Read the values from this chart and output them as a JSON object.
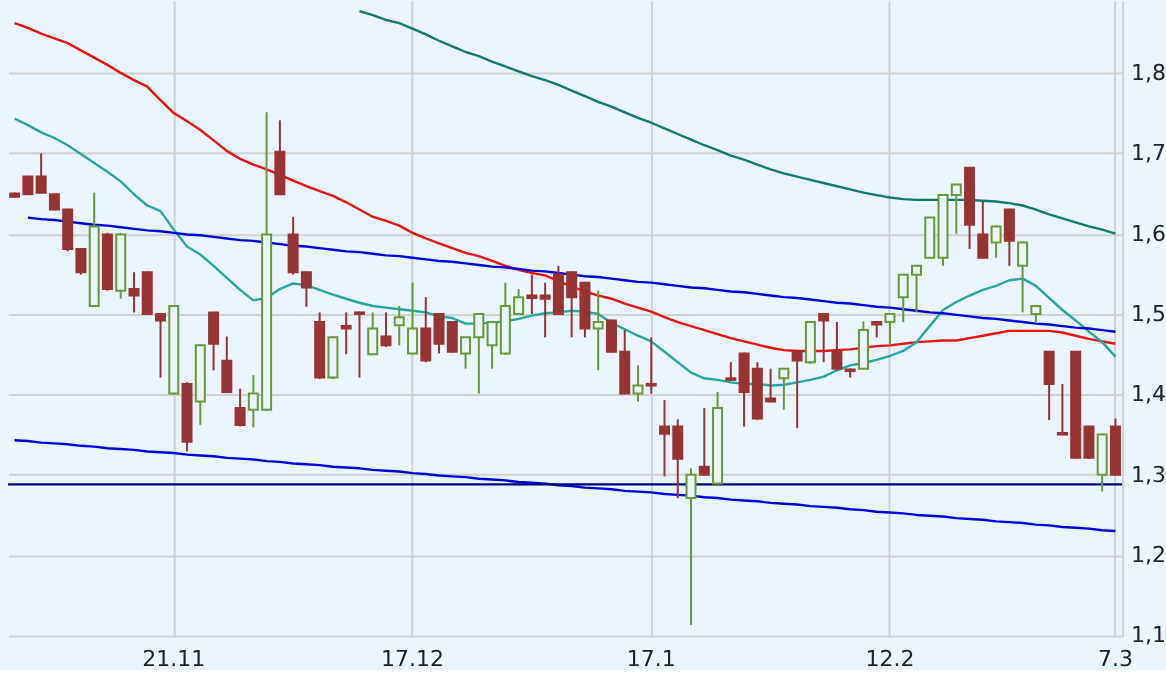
{
  "chart_data": {
    "type": "candlestick",
    "categories": [
      null,
      null,
      null,
      null,
      null,
      null,
      null,
      null,
      null,
      null,
      null,
      null,
      "21.11",
      null,
      null,
      null,
      null,
      null,
      null,
      null,
      null,
      null,
      null,
      null,
      null,
      null,
      null,
      null,
      null,
      null,
      "17.12",
      null,
      null,
      null,
      null,
      null,
      null,
      null,
      null,
      null,
      null,
      null,
      null,
      null,
      null,
      null,
      null,
      null,
      "17.1",
      null,
      null,
      null,
      null,
      null,
      null,
      null,
      null,
      null,
      null,
      null,
      null,
      null,
      null,
      null,
      null,
      null,
      "12.2",
      null,
      null,
      null,
      null,
      null,
      null,
      null,
      null,
      null,
      null,
      null,
      null,
      null,
      null,
      null,
      null,
      "7.3"
    ],
    "ohlc": [
      [
        1.65,
        1.651,
        1.645,
        1.646
      ],
      [
        1.671,
        1.672,
        1.648,
        1.649
      ],
      [
        1.671,
        1.7,
        1.65,
        1.651
      ],
      [
        1.649,
        1.65,
        1.629,
        1.63
      ],
      [
        1.63,
        1.631,
        1.578,
        1.581
      ],
      [
        1.581,
        1.582,
        1.549,
        1.552
      ],
      [
        1.51,
        1.651,
        1.509,
        1.609
      ],
      [
        1.599,
        1.601,
        1.529,
        1.531
      ],
      [
        1.529,
        1.601,
        1.519,
        1.599
      ],
      [
        1.531,
        1.552,
        1.502,
        1.523
      ],
      [
        1.552,
        1.553,
        1.499,
        1.5
      ],
      [
        1.5,
        1.501,
        1.421,
        1.492
      ],
      [
        1.401,
        1.511,
        1.4,
        1.51
      ],
      [
        1.413,
        1.415,
        1.329,
        1.341
      ],
      [
        1.391,
        1.462,
        1.362,
        1.461
      ],
      [
        1.502,
        1.503,
        1.43,
        1.463
      ],
      [
        1.442,
        1.472,
        1.402,
        1.403
      ],
      [
        1.383,
        1.407,
        1.36,
        1.362
      ],
      [
        1.381,
        1.424,
        1.359,
        1.401
      ],
      [
        1.381,
        1.751,
        1.38,
        1.599
      ],
      [
        1.702,
        1.741,
        1.648,
        1.649
      ],
      [
        1.599,
        1.621,
        1.549,
        1.552
      ],
      [
        1.552,
        1.553,
        1.509,
        1.533
      ],
      [
        1.49,
        1.502,
        1.419,
        1.421
      ],
      [
        1.421,
        1.472,
        1.419,
        1.471
      ],
      [
        1.485,
        1.502,
        1.45,
        1.482
      ],
      [
        1.502,
        1.503,
        1.421,
        1.5
      ],
      [
        1.45,
        1.502,
        1.449,
        1.482
      ],
      [
        1.472,
        1.502,
        1.459,
        1.461
      ],
      [
        1.486,
        1.51,
        1.461,
        1.496
      ],
      [
        1.451,
        1.539,
        1.45,
        1.482
      ],
      [
        1.482,
        1.521,
        1.44,
        1.442
      ],
      [
        1.5,
        1.501,
        1.451,
        1.463
      ],
      [
        1.49,
        1.491,
        1.452,
        1.453
      ],
      [
        1.451,
        1.472,
        1.432,
        1.471
      ],
      [
        1.471,
        1.501,
        1.401,
        1.5
      ],
      [
        1.461,
        1.491,
        1.432,
        1.49
      ],
      [
        1.451,
        1.539,
        1.449,
        1.51
      ],
      [
        1.5,
        1.531,
        1.499,
        1.521
      ],
      [
        1.523,
        1.549,
        1.5,
        1.52
      ],
      [
        1.523,
        1.539,
        1.471,
        1.519
      ],
      [
        1.549,
        1.56,
        1.499,
        1.5
      ],
      [
        1.552,
        1.553,
        1.471,
        1.521
      ],
      [
        1.539,
        1.54,
        1.471,
        1.482
      ],
      [
        1.482,
        1.529,
        1.43,
        1.49
      ],
      [
        1.492,
        1.493,
        1.452,
        1.453
      ],
      [
        1.453,
        1.48,
        1.4,
        1.401
      ],
      [
        1.401,
        1.436,
        1.391,
        1.411
      ],
      [
        1.413,
        1.471,
        1.401,
        1.411
      ],
      [
        1.36,
        1.393,
        1.298,
        1.351
      ],
      [
        1.36,
        1.369,
        1.271,
        1.32
      ],
      [
        1.271,
        1.308,
        1.113,
        1.3
      ],
      [
        1.31,
        1.383,
        1.299,
        1.3
      ],
      [
        1.289,
        1.403,
        1.288,
        1.383
      ],
      [
        1.42,
        1.44,
        1.417,
        1.418
      ],
      [
        1.451,
        1.452,
        1.36,
        1.403
      ],
      [
        1.432,
        1.44,
        1.368,
        1.37
      ],
      [
        1.395,
        1.432,
        1.39,
        1.391
      ],
      [
        1.42,
        1.433,
        1.381,
        1.432
      ],
      [
        1.453,
        1.454,
        1.358,
        1.442
      ],
      [
        1.44,
        1.491,
        1.438,
        1.49
      ],
      [
        1.5,
        1.501,
        1.44,
        1.492
      ],
      [
        1.453,
        1.49,
        1.43,
        1.432
      ],
      [
        1.431,
        1.432,
        1.421,
        1.429
      ],
      [
        1.432,
        1.491,
        1.431,
        1.48
      ],
      [
        1.49,
        1.491,
        1.471,
        1.487
      ],
      [
        1.49,
        1.501,
        1.461,
        1.5
      ],
      [
        1.521,
        1.55,
        1.49,
        1.549
      ],
      [
        1.549,
        1.561,
        1.502,
        1.56
      ],
      [
        1.57,
        1.621,
        1.569,
        1.62
      ],
      [
        1.57,
        1.649,
        1.56,
        1.648
      ],
      [
        1.648,
        1.662,
        1.6,
        1.661
      ],
      [
        1.682,
        1.683,
        1.581,
        1.611
      ],
      [
        1.599,
        1.64,
        1.569,
        1.57
      ],
      [
        1.589,
        1.61,
        1.57,
        1.609
      ],
      [
        1.63,
        1.631,
        1.56,
        1.591
      ],
      [
        1.56,
        1.59,
        1.502,
        1.589
      ],
      [
        1.5,
        1.511,
        1.49,
        1.51
      ],
      [
        1.453,
        1.454,
        1.368,
        1.413
      ],
      [
        1.352,
        1.413,
        1.349,
        1.35
      ],
      [
        1.453,
        1.454,
        1.32,
        1.321
      ],
      [
        1.36,
        1.361,
        1.32,
        1.321
      ],
      [
        1.3,
        1.351,
        1.279,
        1.35
      ],
      [
        1.36,
        1.37,
        1.299,
        1.3
      ]
    ],
    "colors": [
      "#993333",
      "#993333",
      "#993333",
      "#993333",
      "#993333",
      "#993333",
      "#669933",
      "#993333",
      "#669933",
      "#993333",
      "#993333",
      "#993333",
      "#669933",
      "#993333",
      "#669933",
      "#993333",
      "#993333",
      "#993333",
      "#669933",
      "#669933",
      "#993333",
      "#993333",
      "#993333",
      "#993333",
      "#669933",
      "#993333",
      "#993333",
      "#669933",
      "#993333",
      "#669933",
      "#669933",
      "#993333",
      "#993333",
      "#993333",
      "#669933",
      "#669933",
      "#669933",
      "#669933",
      "#669933",
      "#993333",
      "#993333",
      "#993333",
      "#993333",
      "#993333",
      "#669933",
      "#993333",
      "#993333",
      "#669933",
      "#993333",
      "#993333",
      "#993333",
      "#669933",
      "#993333",
      "#669933",
      "#993333",
      "#993333",
      "#993333",
      "#993333",
      "#669933",
      "#993333",
      "#669933",
      "#993333",
      "#993333",
      "#993333",
      "#669933",
      "#993333",
      "#669933",
      "#669933",
      "#669933",
      "#669933",
      "#669933",
      "#669933",
      "#993333",
      "#993333",
      "#669933",
      "#993333",
      "#669933",
      "#669933",
      "#993333",
      "#993333",
      "#993333",
      "#993333",
      "#669933",
      "#993333"
    ],
    "series": [
      {
        "type": "line",
        "color": "#0e7a6e",
        "values": [
          null,
          null,
          null,
          null,
          null,
          null,
          null,
          null,
          null,
          null,
          null,
          null,
          null,
          null,
          null,
          null,
          null,
          null,
          null,
          null,
          null,
          null,
          null,
          null,
          null,
          null,
          1.877,
          1.872,
          1.866,
          1.862,
          1.855,
          1.848,
          1.84,
          1.833,
          1.826,
          1.821,
          1.814,
          1.808,
          1.802,
          1.796,
          1.791,
          1.785,
          1.778,
          1.771,
          1.764,
          1.758,
          1.751,
          1.744,
          1.738,
          1.731,
          1.724,
          1.717,
          1.71,
          1.704,
          1.697,
          1.692,
          1.686,
          1.68,
          1.675,
          1.671,
          1.667,
          1.663,
          1.659,
          1.655,
          1.651,
          1.648,
          1.645,
          1.643,
          1.642,
          1.642,
          1.642,
          1.642,
          1.642,
          1.641,
          1.64,
          1.638,
          1.635,
          1.63,
          1.624,
          1.619,
          1.614,
          1.609,
          1.605,
          1.6
        ]
      },
      {
        "type": "line",
        "color": "#ee1111",
        "values": [
          1.862,
          1.856,
          1.849,
          1.843,
          1.837,
          1.828,
          1.819,
          1.81,
          1.8,
          1.791,
          1.783,
          1.766,
          1.75,
          1.74,
          1.729,
          1.716,
          1.703,
          1.693,
          1.686,
          1.68,
          1.673,
          1.666,
          1.659,
          1.653,
          1.647,
          1.639,
          1.63,
          1.621,
          1.616,
          1.61,
          1.601,
          1.594,
          1.588,
          1.582,
          1.576,
          1.572,
          1.566,
          1.56,
          1.555,
          1.551,
          1.548,
          1.541,
          1.534,
          1.528,
          1.523,
          1.519,
          1.513,
          1.508,
          1.503,
          1.496,
          1.49,
          1.485,
          1.48,
          1.475,
          1.47,
          1.466,
          1.462,
          1.458,
          1.455,
          1.454,
          1.454,
          1.454,
          1.455,
          1.456,
          1.458,
          1.46,
          1.461,
          1.463,
          1.465,
          1.466,
          1.467,
          1.467,
          1.47,
          1.473,
          1.476,
          1.479,
          1.479,
          1.479,
          1.479,
          1.477,
          1.473,
          1.469,
          1.466,
          1.463
        ]
      },
      {
        "type": "line",
        "color": "#20a8a0",
        "values": [
          1.743,
          1.735,
          1.726,
          1.719,
          1.71,
          1.699,
          1.688,
          1.677,
          1.665,
          1.649,
          1.635,
          1.628,
          1.605,
          1.584,
          1.574,
          1.56,
          1.545,
          1.53,
          1.517,
          1.52,
          1.531,
          1.538,
          1.536,
          1.53,
          1.524,
          1.519,
          1.514,
          1.51,
          1.508,
          1.506,
          1.504,
          1.502,
          1.497,
          1.495,
          1.488,
          1.488,
          1.489,
          1.491,
          1.494,
          1.498,
          1.501,
          1.502,
          1.504,
          1.503,
          1.5,
          1.489,
          1.481,
          1.473,
          1.466,
          1.453,
          1.44,
          1.427,
          1.42,
          1.418,
          1.415,
          1.413,
          1.413,
          1.411,
          1.412,
          1.415,
          1.418,
          1.422,
          1.43,
          1.436,
          1.439,
          1.443,
          1.448,
          1.454,
          1.465,
          1.485,
          1.505,
          1.515,
          1.523,
          1.53,
          1.535,
          1.542,
          1.544,
          1.535,
          1.52,
          1.505,
          1.492,
          1.478,
          1.465,
          1.447
        ]
      },
      {
        "type": "line",
        "color": "#0000dd",
        "values": [
          null,
          1.62,
          1.618,
          1.617,
          1.615,
          1.613,
          1.611,
          1.61,
          1.608,
          1.606,
          1.604,
          1.603,
          1.601,
          1.599,
          1.598,
          1.596,
          1.594,
          1.592,
          1.591,
          1.589,
          1.587,
          1.585,
          1.584,
          1.582,
          1.58,
          1.578,
          1.577,
          1.575,
          1.573,
          1.572,
          1.57,
          1.568,
          1.566,
          1.565,
          1.563,
          1.561,
          1.559,
          1.558,
          1.556,
          1.554,
          1.553,
          1.551,
          1.549,
          1.547,
          1.546,
          1.544,
          1.542,
          1.54,
          1.539,
          1.537,
          1.535,
          1.533,
          1.532,
          1.53,
          1.528,
          1.527,
          1.525,
          1.523,
          1.521,
          1.52,
          1.518,
          1.516,
          1.514,
          1.513,
          1.511,
          1.509,
          1.508,
          1.506,
          1.504,
          1.502,
          1.501,
          1.499,
          1.497,
          1.495,
          1.494,
          1.492,
          1.49,
          1.488,
          1.487,
          1.485,
          1.483,
          1.482,
          1.48,
          1.478
        ]
      },
      {
        "type": "line",
        "color": "#0000dd",
        "values": [
          1.343,
          1.342,
          1.34,
          1.339,
          1.338,
          1.336,
          1.335,
          1.333,
          1.332,
          1.331,
          1.329,
          1.328,
          1.327,
          1.325,
          1.324,
          1.323,
          1.321,
          1.32,
          1.319,
          1.317,
          1.316,
          1.314,
          1.313,
          1.312,
          1.31,
          1.309,
          1.308,
          1.306,
          1.305,
          1.304,
          1.302,
          1.301,
          1.299,
          1.298,
          1.297,
          1.295,
          1.294,
          1.293,
          1.291,
          1.29,
          1.289,
          1.287,
          1.286,
          1.284,
          1.283,
          1.282,
          1.28,
          1.279,
          1.278,
          1.276,
          1.275,
          1.274,
          1.272,
          1.271,
          1.269,
          1.268,
          1.267,
          1.265,
          1.264,
          1.263,
          1.261,
          1.26,
          1.259,
          1.257,
          1.256,
          1.254,
          1.253,
          1.252,
          1.25,
          1.249,
          1.248,
          1.246,
          1.245,
          1.244,
          1.242,
          1.241,
          1.24,
          1.238,
          1.237,
          1.235,
          1.234,
          1.233,
          1.231,
          1.23
        ]
      }
    ],
    "ref_lines": [
      {
        "axis": "y",
        "value": 1.288,
        "color": "#000080"
      }
    ],
    "ylim": [
      1.1,
      1.89
    ],
    "yticks": [
      {
        "value": 1.1,
        "label": "1,1"
      },
      {
        "value": 1.2,
        "label": "1,2"
      },
      {
        "value": 1.3,
        "label": "1,3"
      },
      {
        "value": 1.4,
        "label": "1,4"
      },
      {
        "value": 1.5,
        "label": "1,5"
      },
      {
        "value": 1.6,
        "label": "1,6"
      },
      {
        "value": 1.7,
        "label": "1,7"
      },
      {
        "value": 1.8,
        "label": "1,8"
      }
    ],
    "grid": true
  }
}
